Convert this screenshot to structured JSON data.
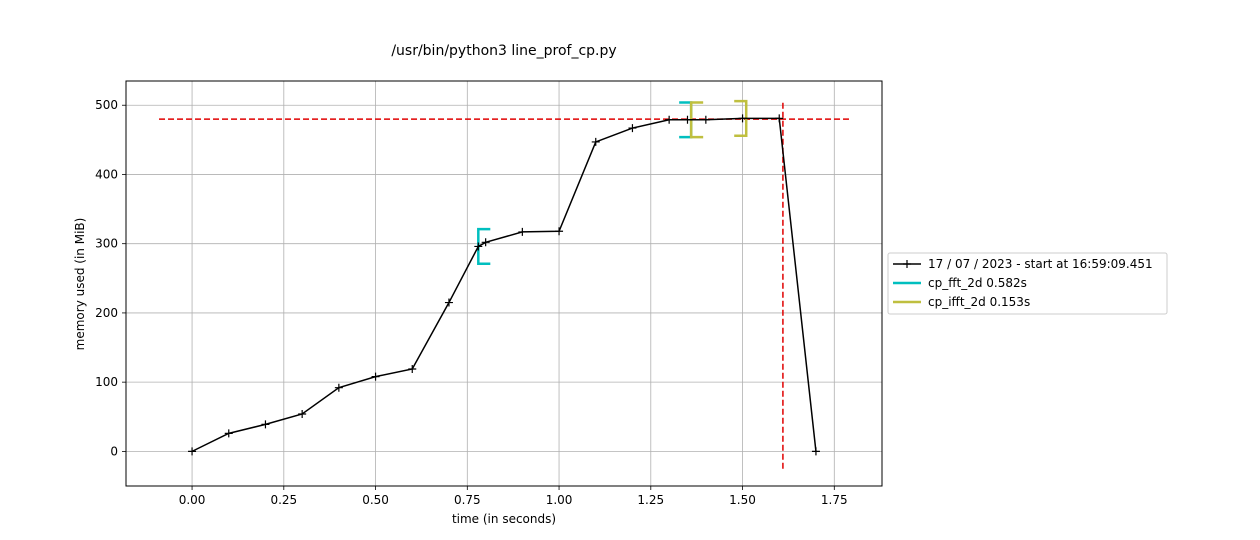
{
  "chart_data": {
    "type": "line",
    "title": "/usr/bin/python3 line_prof_cp.py",
    "xlabel": "time (in seconds)",
    "ylabel": "memory used (in MiB)",
    "xlim": [
      -0.18,
      1.88
    ],
    "ylim": [
      -50,
      535
    ],
    "grid": true,
    "legend_position": "right-outside",
    "x_ticks": [
      0.0,
      0.25,
      0.5,
      0.75,
      1.0,
      1.25,
      1.5,
      1.75
    ],
    "x_tick_labels": [
      "0.00",
      "0.25",
      "0.50",
      "0.75",
      "1.00",
      "1.25",
      "1.50",
      "1.75"
    ],
    "y_ticks": [
      0,
      100,
      200,
      300,
      400,
      500
    ],
    "y_tick_labels": [
      "0",
      "100",
      "200",
      "300",
      "400",
      "500"
    ],
    "series": [
      {
        "name": "17 / 07 / 2023 - start at 16:59:09.451",
        "color": "#000000",
        "marker": "+",
        "x": [
          0.0,
          0.1,
          0.2,
          0.3,
          0.4,
          0.5,
          0.6,
          0.7,
          0.78,
          0.8,
          0.9,
          1.0,
          1.1,
          1.2,
          1.3,
          1.35,
          1.4,
          1.5,
          1.6,
          1.7
        ],
        "y": [
          0,
          26,
          39,
          54,
          92,
          108,
          119,
          215,
          296,
          302,
          317,
          318,
          447,
          467,
          479,
          479,
          479,
          481,
          481,
          0
        ]
      }
    ],
    "reference_lines": [
      {
        "orientation": "horizontal",
        "value": 480,
        "from": -0.09,
        "to": 1.79,
        "color": "#e00000",
        "style": "dashed"
      },
      {
        "orientation": "vertical",
        "value": 1.61,
        "from": -25,
        "to": 505,
        "color": "#e00000",
        "style": "dashed"
      }
    ],
    "function_brackets": [
      {
        "name": "cp_fft_2d 0.582s",
        "color": "#00bfbf",
        "intervals": [
          {
            "start": 0.78,
            "end": 1.36,
            "start_y": 296,
            "end_y": 479
          }
        ]
      },
      {
        "name": "cp_ifft_2d 0.153s",
        "color": "#bfbf3f",
        "intervals": [
          {
            "start": 1.36,
            "end": 1.51,
            "start_y": 479,
            "end_y": 481
          }
        ]
      }
    ]
  }
}
